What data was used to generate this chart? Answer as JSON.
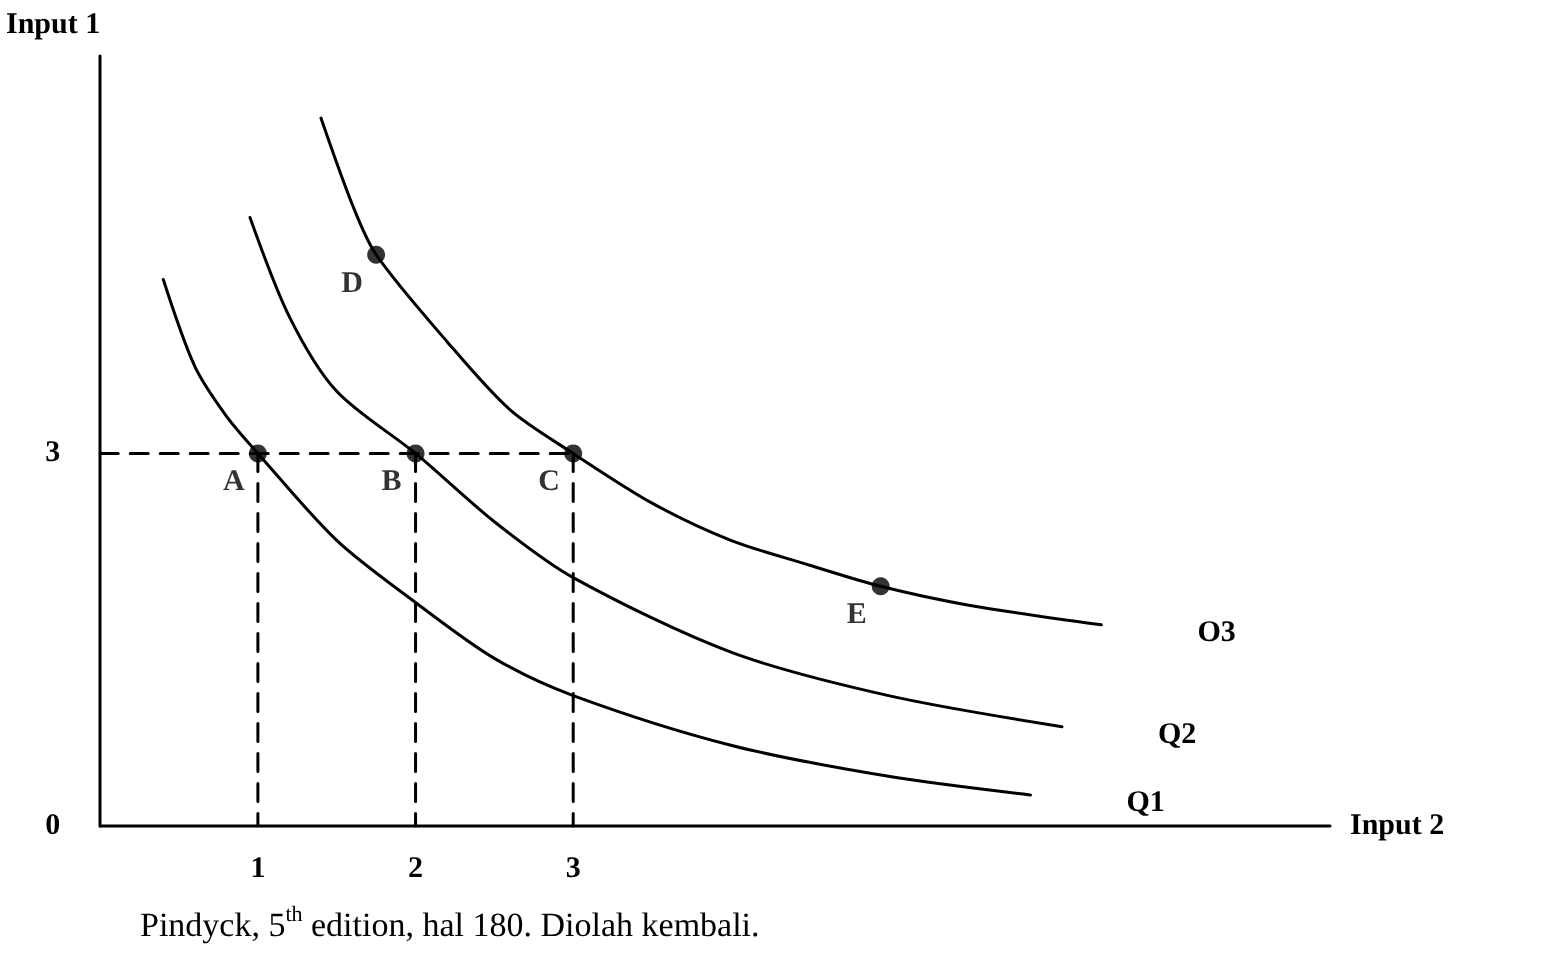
{
  "chart_data": {
    "type": "line",
    "xlabel": "Input 2",
    "ylabel": "Input 1",
    "xlim": [
      0,
      7.8
    ],
    "ylim": [
      0,
      6.2
    ],
    "xticks": [
      1,
      2,
      3
    ],
    "yticks": [
      0,
      3
    ],
    "grid": false,
    "legend": false,
    "marker": "none",
    "line_style": "solid",
    "series": [
      {
        "name": "Q1",
        "color": "#000000",
        "x": [
          0.4,
          0.6,
          0.8,
          1,
          1.5,
          2,
          2.5,
          3,
          4,
          5,
          5.9
        ],
        "values": [
          4.4,
          3.7,
          3.3,
          3,
          2.3,
          1.8,
          1.35,
          1.05,
          0.65,
          0.4,
          0.25
        ]
      },
      {
        "name": "Q2",
        "color": "#000000",
        "x": [
          0.95,
          1.2,
          1.5,
          2,
          2.5,
          3,
          4,
          5,
          6.1
        ],
        "values": [
          4.9,
          4.1,
          3.5,
          3,
          2.45,
          2.0,
          1.4,
          1.05,
          0.8
        ]
      },
      {
        "name": "O3",
        "color": "#000000",
        "x": [
          1.4,
          1.6,
          1.75,
          2.2,
          2.6,
          3,
          3.5,
          4,
          4.5,
          4.95,
          5.5,
          6.35
        ],
        "values": [
          5.7,
          5.0,
          4.6,
          3.9,
          3.35,
          3,
          2.6,
          2.3,
          2.1,
          1.93,
          1.78,
          1.62
        ]
      },
      {
        "type": "line",
        "color": "#000000",
        "line_style": "dashed",
        "x": [
          0,
          3,
          null,
          1,
          1,
          null,
          2,
          2,
          null,
          3,
          3
        ],
        "values": [
          3,
          3,
          null,
          3,
          0,
          null,
          3,
          0,
          null,
          3,
          0
        ]
      },
      {
        "type": "scatter",
        "color": "#000000",
        "marker": "circle",
        "x": [
          1,
          2,
          3,
          1.75,
          4.95
        ],
        "values": [
          3,
          3,
          3,
          4.6,
          1.93
        ]
      }
    ],
    "annotations": [
      {
        "text": "A",
        "x": 1,
        "y": 3
      },
      {
        "text": "B",
        "x": 2,
        "y": 3
      },
      {
        "text": "C",
        "x": 3,
        "y": 3
      },
      {
        "text": "D",
        "x": 1.75,
        "y": 4.6
      },
      {
        "text": "E",
        "x": 4.95,
        "y": 1.93
      },
      "Pindyck, 5$^{th}$ edition, hal 180. Diolah kembali."
    ]
  }
}
